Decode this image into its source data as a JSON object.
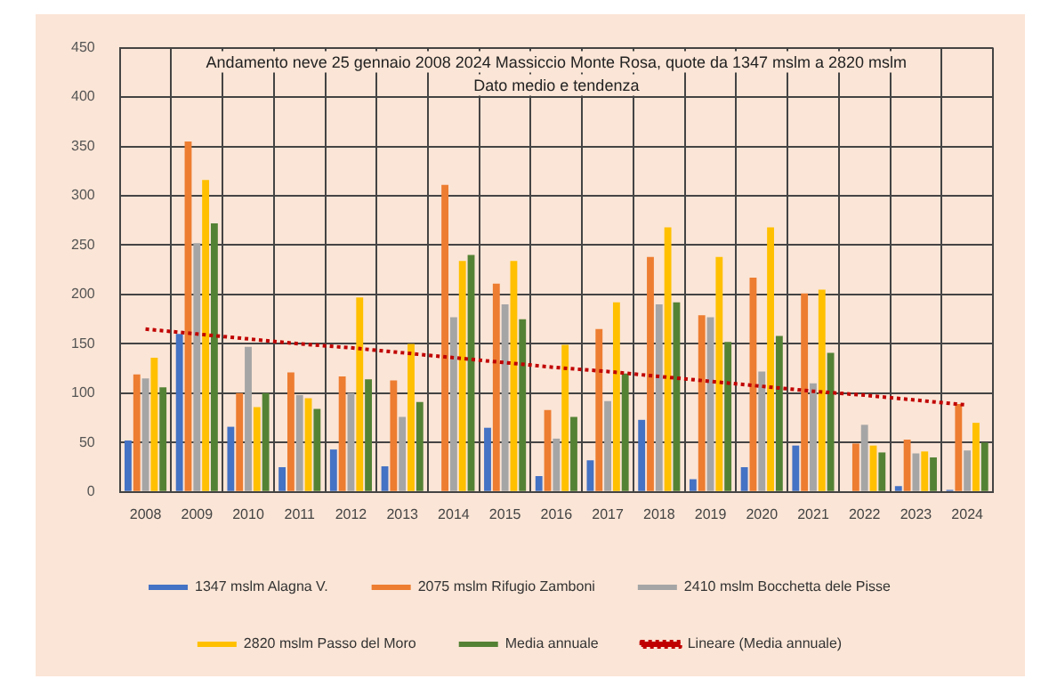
{
  "chart_data": {
    "type": "bar",
    "title": "Andamento neve 25 gennaio 2008 2024 Massiccio Monte Rosa, quote da 1347 mslm a 2820 mslm",
    "subtitle": "Dato medio e tendenza",
    "categories": [
      "2008",
      "2009",
      "2010",
      "2011",
      "2012",
      "2013",
      "2014",
      "2015",
      "2016",
      "2017",
      "2018",
      "2019",
      "2020",
      "2021",
      "2022",
      "2023",
      "2024"
    ],
    "series": [
      {
        "name": "1347 mslm Alagna V.",
        "color": "#4472c4",
        "values": [
          52,
          160,
          66,
          25,
          43,
          26,
          0,
          65,
          16,
          32,
          73,
          13,
          25,
          47,
          0,
          6,
          2
        ]
      },
      {
        "name": "2075 mslm Rifugio Zamboni",
        "color": "#ed7d31",
        "values": [
          119,
          355,
          100,
          121,
          117,
          113,
          311,
          211,
          83,
          165,
          238,
          179,
          217,
          201,
          49,
          53,
          89
        ]
      },
      {
        "name": "2410 mslm Bocchetta dele Pisse",
        "color": "#a5a5a5",
        "values": [
          115,
          252,
          147,
          98,
          100,
          76,
          177,
          190,
          54,
          92,
          190,
          177,
          122,
          110,
          68,
          39,
          42
        ]
      },
      {
        "name": "2820 mslm Passo del Moro",
        "color": "#ffc000",
        "values": [
          136,
          316,
          86,
          95,
          197,
          150,
          234,
          234,
          149,
          192,
          268,
          238,
          268,
          205,
          47,
          41,
          70
        ]
      },
      {
        "name": "Media annuale",
        "color": "#548235",
        "values": [
          106,
          272,
          100,
          84,
          114,
          91,
          240,
          175,
          76,
          120,
          192,
          152,
          158,
          141,
          40,
          35,
          50
        ]
      },
      {
        "name": "Lineare (Media annuale)",
        "type": "line",
        "color": "#c00000",
        "line_style": "dotted",
        "values": [
          165,
          160,
          155,
          150,
          146,
          141,
          136,
          131,
          126,
          122,
          117,
          112,
          107,
          102,
          98,
          93,
          88
        ]
      }
    ],
    "ylim": [
      0,
      450
    ],
    "yticks": [
      0,
      50,
      100,
      150,
      200,
      250,
      300,
      350,
      400,
      450
    ],
    "grid": true,
    "legend": "bottom",
    "marker": "none"
  }
}
